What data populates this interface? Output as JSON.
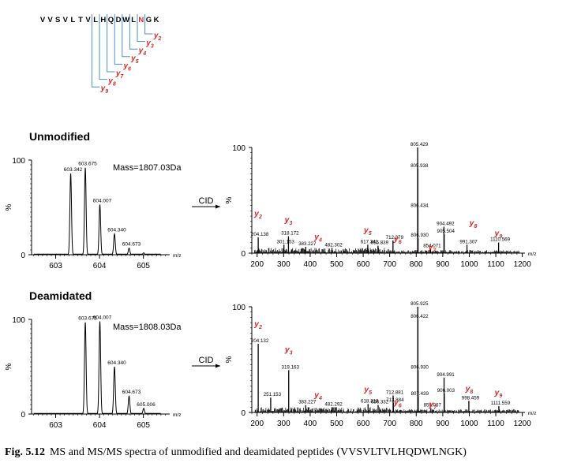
{
  "peptide": {
    "letters": [
      "V",
      "V",
      "S",
      "V",
      "L",
      "T",
      "V",
      "L",
      "H",
      "Q",
      "D",
      "W",
      "L",
      "N",
      "G",
      "K"
    ],
    "highlight_index": 13,
    "highlight_color": "#d42a2a",
    "bracket_color": "#4a8fd0",
    "ions": [
      {
        "label": "y",
        "sub": "2",
        "cleave_after": 13
      },
      {
        "label": "y",
        "sub": "3",
        "cleave_after": 12
      },
      {
        "label": "y",
        "sub": "4",
        "cleave_after": 11
      },
      {
        "label": "y",
        "sub": "5",
        "cleave_after": 10
      },
      {
        "label": "y",
        "sub": "6",
        "cleave_after": 9
      },
      {
        "label": "y",
        "sub": "7",
        "cleave_after": 8
      },
      {
        "label": "y",
        "sub": "8",
        "cleave_after": 7
      },
      {
        "label": "y",
        "sub": "9",
        "cleave_after": 6
      }
    ]
  },
  "caption": {
    "label": "Fig. 5.12",
    "text": "MS and MS/MS spectra of unmodified and deamidated peptides (VVSVLTVLHQDWLNGK)"
  },
  "colors": {
    "ion_label": "#d42a2a",
    "ink": "#000000"
  },
  "chart_data": [
    {
      "type": "line",
      "panel": "ms",
      "section_title": "Unmodified",
      "annotation": "Mass=1807.03Da",
      "ylabel": "%",
      "xlabel": "m/z",
      "xlim": [
        602.45,
        605.6
      ],
      "ylim": [
        0,
        100
      ],
      "xticks": [
        603,
        604,
        605
      ],
      "yticks": [
        0,
        100
      ],
      "peaks": [
        {
          "x": 603.342,
          "y": 86,
          "label": "603.342"
        },
        {
          "x": 603.675,
          "y": 92,
          "label": "603.675"
        },
        {
          "x": 604.007,
          "y": 53,
          "label": "604.007"
        },
        {
          "x": 604.34,
          "y": 22,
          "label": "604.340"
        },
        {
          "x": 604.673,
          "y": 7,
          "label": "604.673"
        },
        {
          "x": 605.006,
          "y": 2,
          "label": ""
        }
      ]
    },
    {
      "type": "bar",
      "panel": "msms",
      "arrow_label": "CID",
      "ylabel": "%",
      "xlabel": "m/z",
      "xlim": [
        180,
        1210
      ],
      "ylim": [
        0,
        100
      ],
      "xticks": [
        200,
        300,
        400,
        500,
        600,
        700,
        800,
        900,
        1000,
        1100,
        1200
      ],
      "yticks": [
        0,
        100
      ],
      "peaks": [
        {
          "x": 204.138,
          "y": 15,
          "label": "204.138"
        },
        {
          "x": 301.153,
          "y": 8,
          "label": "301.153"
        },
        {
          "x": 318.172,
          "y": 16,
          "label": "318.172"
        },
        {
          "x": 383.227,
          "y": 6,
          "label": "383.227"
        },
        {
          "x": 482.302,
          "y": 5,
          "label": "482.302"
        },
        {
          "x": 617.341,
          "y": 8,
          "label": "617.341"
        },
        {
          "x": 655.839,
          "y": 7,
          "label": "655.839"
        },
        {
          "x": 712.379,
          "y": 12,
          "label": "712.379"
        },
        {
          "x": 805.429,
          "y": 100,
          "label": "805.429"
        },
        {
          "x": 805.938,
          "y": 80,
          "label": "805.938"
        },
        {
          "x": 806.434,
          "y": 42,
          "label": "806.434"
        },
        {
          "x": 806.93,
          "y": 14,
          "label": "806.930"
        },
        {
          "x": 854.071,
          "y": 4,
          "label": "854.071"
        },
        {
          "x": 904.492,
          "y": 25,
          "label": "904.492"
        },
        {
          "x": 905.504,
          "y": 18,
          "label": "905.504"
        },
        {
          "x": 991.307,
          "y": 8,
          "label": "991.307"
        },
        {
          "x": 1110.569,
          "y": 10,
          "label": "1110.569"
        }
      ],
      "ion_labels": [
        {
          "text": "y",
          "sub": "2",
          "x": 204,
          "y": 33
        },
        {
          "text": "y",
          "sub": "3",
          "x": 318,
          "y": 27
        },
        {
          "text": "y",
          "sub": "4",
          "x": 430,
          "y": 11
        },
        {
          "text": "y",
          "sub": "5",
          "x": 617,
          "y": 17
        },
        {
          "text": "y",
          "sub": "6",
          "x": 730,
          "y": 9
        },
        {
          "text": "y",
          "sub": "7",
          "x": 860,
          "y": 1
        },
        {
          "text": "y",
          "sub": "8",
          "x": 1015,
          "y": 24
        },
        {
          "text": "y",
          "sub": "9",
          "x": 1110,
          "y": 14
        }
      ]
    },
    {
      "type": "line",
      "panel": "ms",
      "section_title": "Deamidated",
      "annotation": "Mass=1808.03Da",
      "ylabel": "%",
      "xlabel": "m/z",
      "xlim": [
        602.45,
        605.6
      ],
      "ylim": [
        0,
        100
      ],
      "xticks": [
        603,
        604,
        605
      ],
      "yticks": [
        0,
        100
      ],
      "peaks": [
        {
          "x": 603.342,
          "y": 0,
          "label": ""
        },
        {
          "x": 603.675,
          "y": 97,
          "label": "603.675"
        },
        {
          "x": 604.007,
          "y": 98,
          "label": "604.007"
        },
        {
          "x": 604.34,
          "y": 50,
          "label": "604.340"
        },
        {
          "x": 604.673,
          "y": 19,
          "label": "604.673"
        },
        {
          "x": 605.006,
          "y": 6,
          "label": "605.006"
        }
      ]
    },
    {
      "type": "bar",
      "panel": "msms",
      "arrow_label": "CID",
      "ylabel": "%",
      "xlabel": "m/z",
      "xlim": [
        180,
        1210
      ],
      "ylim": [
        0,
        100
      ],
      "xticks": [
        200,
        300,
        400,
        500,
        600,
        700,
        800,
        900,
        1000,
        1100,
        1200
      ],
      "yticks": [
        0,
        100
      ],
      "peaks": [
        {
          "x": 204.132,
          "y": 65,
          "label": "204.132"
        },
        {
          "x": 251.153,
          "y": 14,
          "label": "251.153"
        },
        {
          "x": 319.163,
          "y": 40,
          "label": "319.163"
        },
        {
          "x": 383.227,
          "y": 7,
          "label": "383.227"
        },
        {
          "x": 482.292,
          "y": 5,
          "label": "482.292"
        },
        {
          "x": 618.318,
          "y": 8,
          "label": "618.318"
        },
        {
          "x": 656.332,
          "y": 7,
          "label": "656.332"
        },
        {
          "x": 712.881,
          "y": 16,
          "label": "712.881"
        },
        {
          "x": 713.884,
          "y": 9,
          "label": "713.884"
        },
        {
          "x": 805.925,
          "y": 100,
          "label": "805.925"
        },
        {
          "x": 806.422,
          "y": 88,
          "label": "806.422"
        },
        {
          "x": 806.93,
          "y": 40,
          "label": "806.930"
        },
        {
          "x": 807.439,
          "y": 15,
          "label": "807.439"
        },
        {
          "x": 855.067,
          "y": 4,
          "label": "855.067"
        },
        {
          "x": 904.991,
          "y": 33,
          "label": "904.991"
        },
        {
          "x": 906.003,
          "y": 18,
          "label": "906.003"
        },
        {
          "x": 998.459,
          "y": 11,
          "label": "998.459"
        },
        {
          "x": 1111.559,
          "y": 6,
          "label": "1111.559"
        }
      ],
      "ion_labels": [
        {
          "text": "y",
          "sub": "2",
          "x": 204,
          "y": 79
        },
        {
          "text": "y",
          "sub": "3",
          "x": 319,
          "y": 55
        },
        {
          "text": "y",
          "sub": "4",
          "x": 430,
          "y": 12
        },
        {
          "text": "y",
          "sub": "5",
          "x": 618,
          "y": 17
        },
        {
          "text": "y",
          "sub": "6",
          "x": 730,
          "y": 5
        },
        {
          "text": "y",
          "sub": "7",
          "x": 862,
          "y": 3
        },
        {
          "text": "y",
          "sub": "8",
          "x": 1000,
          "y": 18
        },
        {
          "text": "y",
          "sub": "9",
          "x": 1110,
          "y": 14
        }
      ]
    }
  ]
}
